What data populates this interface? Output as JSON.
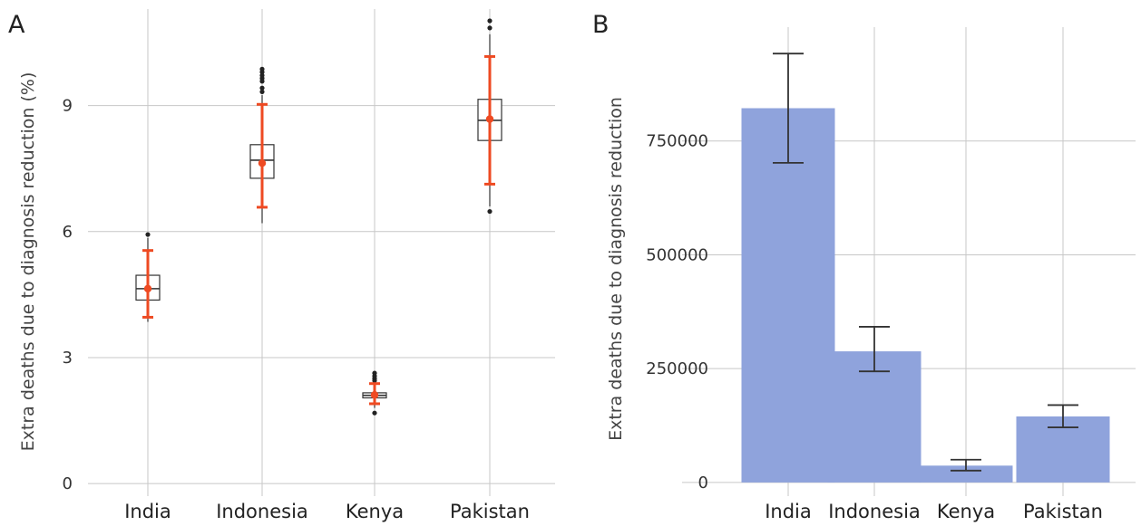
{
  "panels": {
    "a": {
      "letter": "A"
    },
    "b": {
      "letter": "B"
    }
  },
  "colors": {
    "grid": "#c7c7c7",
    "box_stroke": "#333333",
    "outlier": "#222222",
    "mean_ci": "#ee4a22",
    "bar_fill": "#8fa3dc",
    "error_bar": "#333333"
  },
  "chart_data": [
    {
      "panel": "A",
      "type": "box",
      "title": "",
      "xlabel": "",
      "ylabel": "Extra deaths due to diagnosis reduction (%)",
      "categories": [
        "India",
        "Indonesia",
        "Kenya",
        "Pakistan"
      ],
      "ylim": [
        -0.3,
        11.3
      ],
      "yticks": [
        0,
        3,
        6,
        9
      ],
      "ytick_labels": [
        "0",
        "3",
        "6",
        "9"
      ],
      "grid": true,
      "boxes": [
        {
          "category": "India",
          "q1": 4.37,
          "median": 4.64,
          "q3": 4.96,
          "whisker_low": 3.85,
          "whisker_high": 5.85,
          "outliers": [
            5.93
          ]
        },
        {
          "category": "Indonesia",
          "q1": 7.27,
          "median": 7.7,
          "q3": 8.07,
          "whisker_low": 6.2,
          "whisker_high": 9.25,
          "outliers": [
            9.33,
            9.42,
            9.58,
            9.65,
            9.72,
            9.8,
            9.87
          ]
        },
        {
          "category": "Kenya",
          "q1": 2.04,
          "median": 2.1,
          "q3": 2.16,
          "whisker_low": 1.8,
          "whisker_high": 2.42,
          "outliers": [
            1.68,
            2.45,
            2.5,
            2.56,
            2.63
          ]
        },
        {
          "category": "Pakistan",
          "q1": 8.17,
          "median": 8.65,
          "q3": 9.15,
          "whisker_low": 6.6,
          "whisker_high": 10.7,
          "outliers": [
            6.48,
            10.85,
            11.02
          ]
        }
      ],
      "mean_ci": [
        {
          "category": "India",
          "mean": 4.64,
          "low": 3.96,
          "high": 5.55
        },
        {
          "category": "Indonesia",
          "mean": 7.63,
          "low": 6.58,
          "high": 9.03
        },
        {
          "category": "Kenya",
          "mean": 2.11,
          "low": 1.9,
          "high": 2.38
        },
        {
          "category": "Pakistan",
          "mean": 8.68,
          "low": 7.13,
          "high": 10.17
        }
      ]
    },
    {
      "panel": "B",
      "type": "bar",
      "title": "",
      "xlabel": "",
      "ylabel": "Extra deaths due to diagnosis reduction",
      "categories": [
        "India",
        "Indonesia",
        "Kenya",
        "Pakistan"
      ],
      "values": [
        822000,
        288000,
        37000,
        145000
      ],
      "error_low": [
        702000,
        244000,
        26000,
        121000
      ],
      "error_high": [
        942000,
        342000,
        50000,
        170000
      ],
      "ylim": [
        -30000,
        1000000
      ],
      "yticks": [
        0,
        250000,
        500000,
        750000
      ],
      "ytick_labels": [
        "0",
        "250000",
        "500000",
        "750000"
      ],
      "grid": true
    }
  ]
}
